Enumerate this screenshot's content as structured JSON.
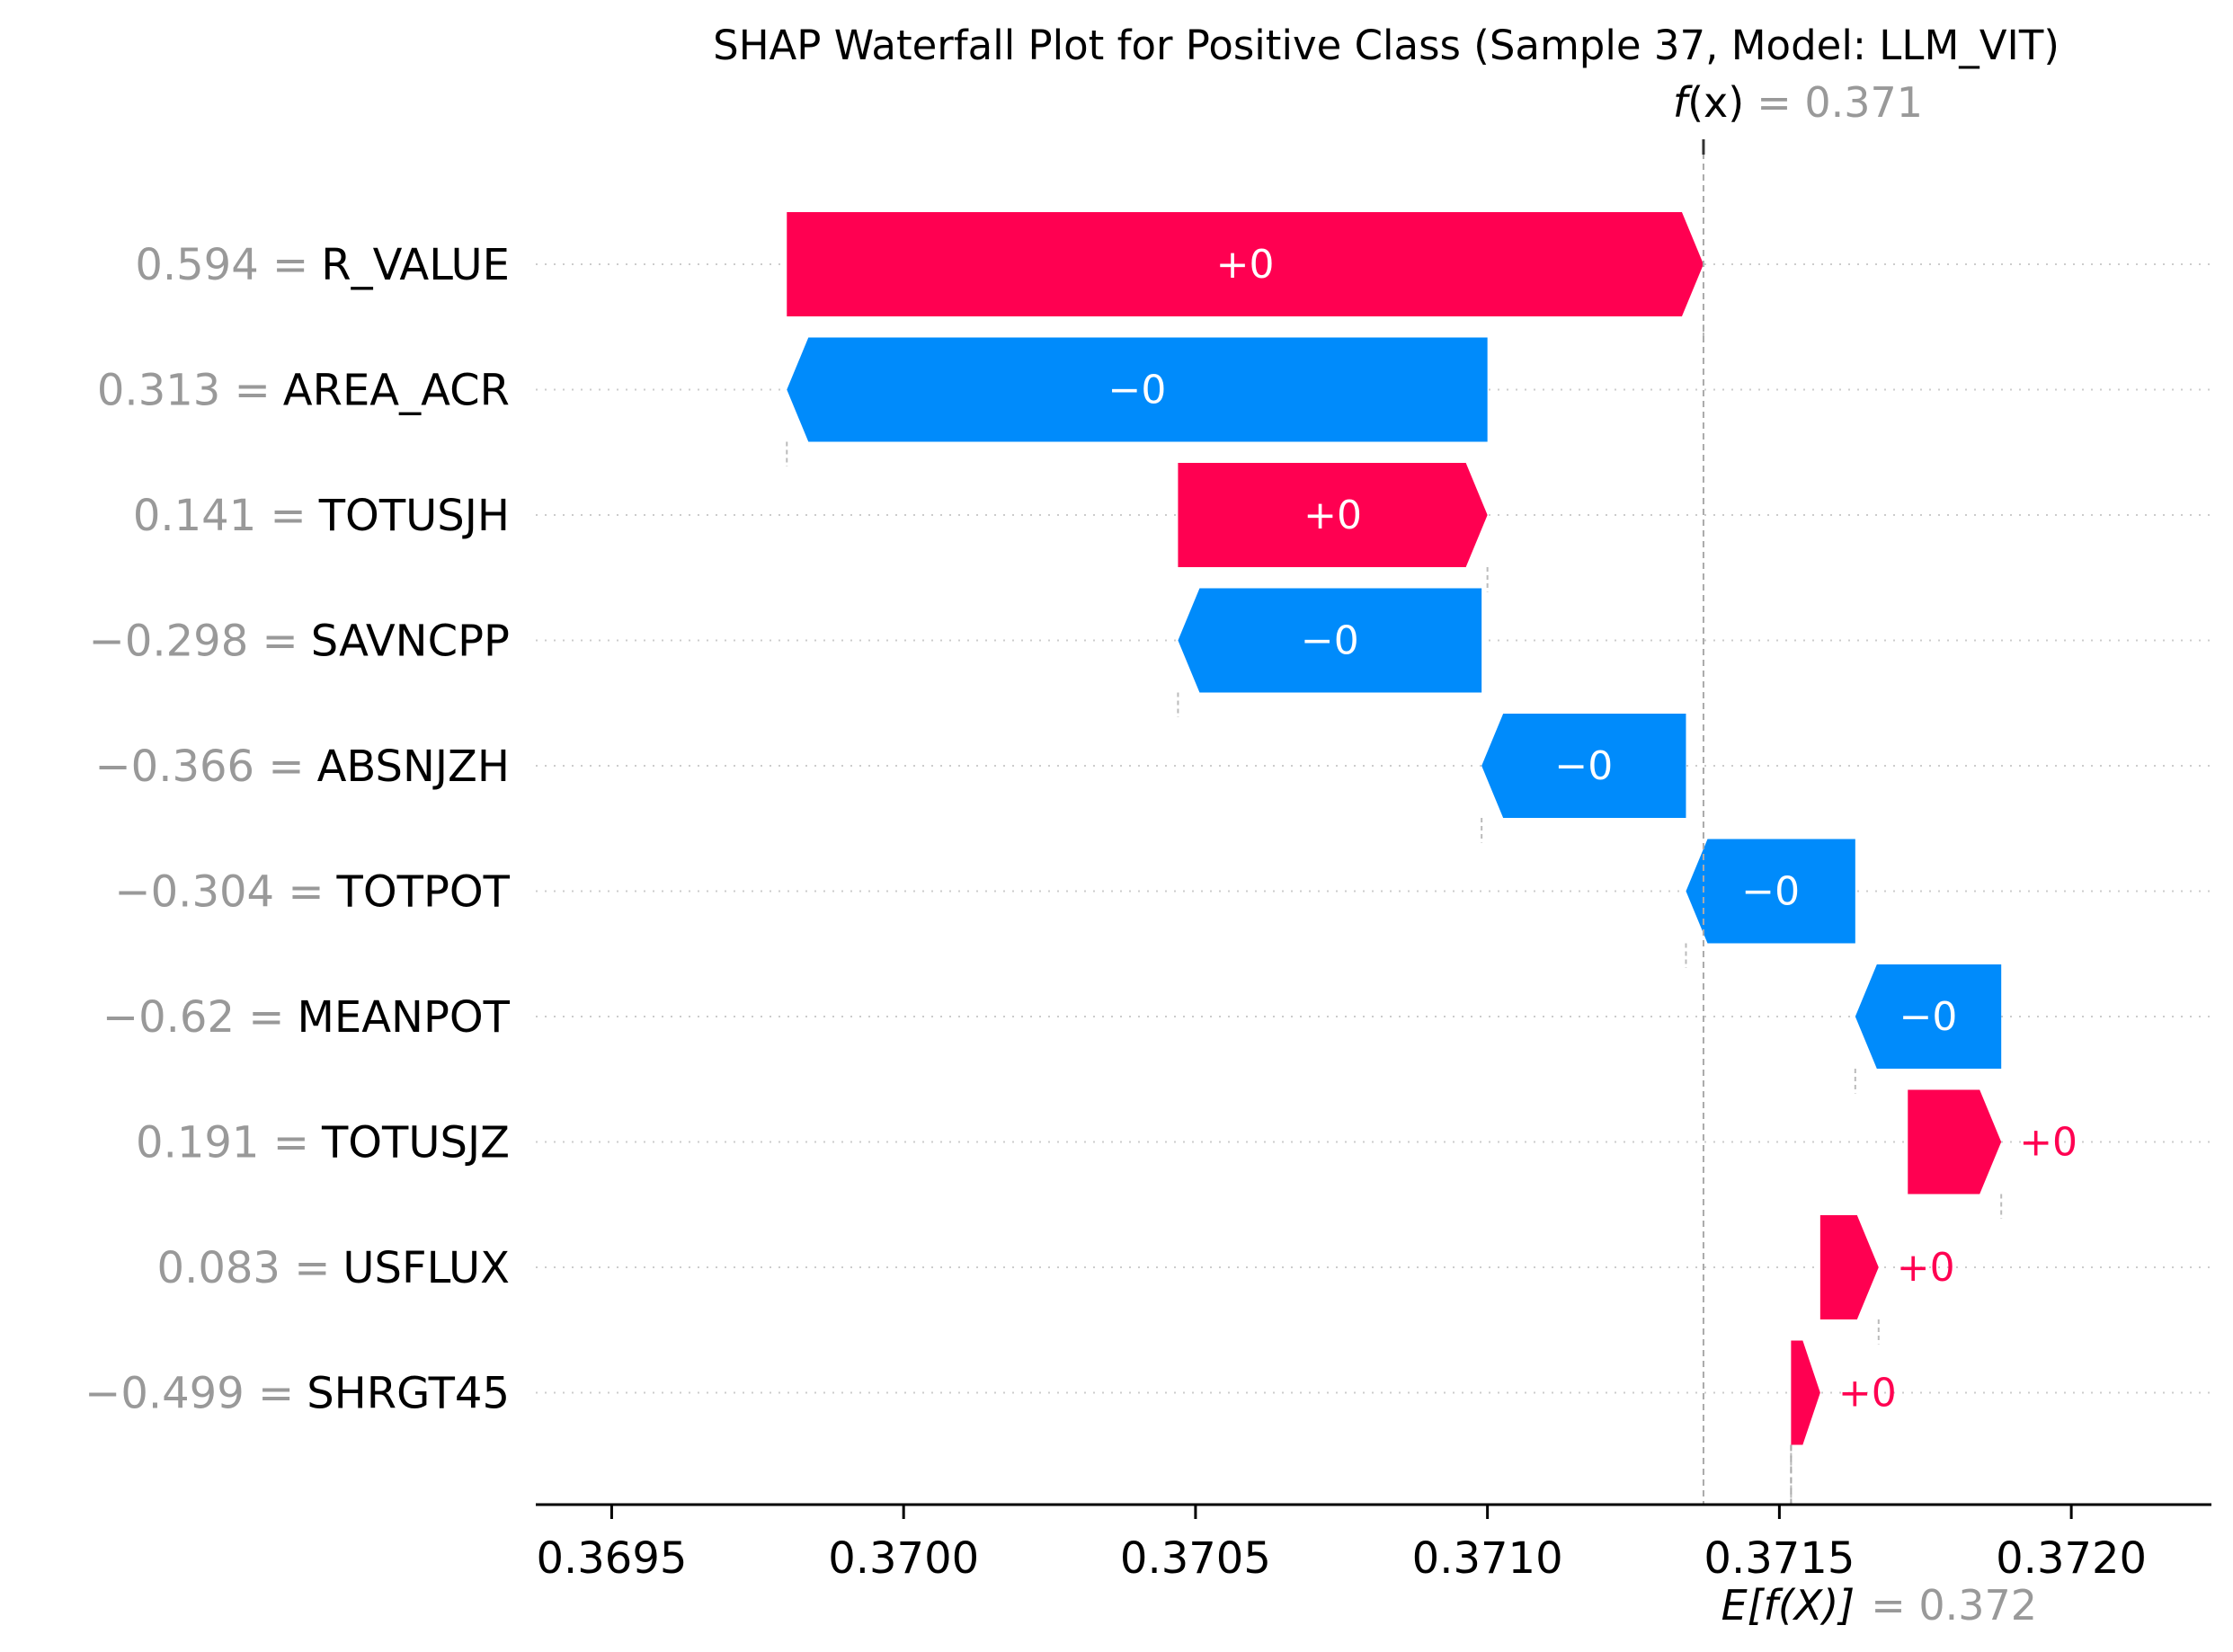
{
  "chart_data": {
    "type": "waterfall",
    "title": "SHAP Waterfall Plot for Positive Class (Sample 37, Model: LLM_VIT)",
    "fx": {
      "label_f": "f",
      "label_x": "(x)",
      "label_eq": "= 0.371",
      "value": 0.37137
    },
    "efx": {
      "label_main": "E[f(X)]",
      "label_eq": "= 0.372",
      "value": 0.37152
    },
    "xlim": [
      0.36937,
      0.37224
    ],
    "xticks": [
      {
        "value": 0.3695,
        "label": "0.3695"
      },
      {
        "value": 0.37,
        "label": "0.3700"
      },
      {
        "value": 0.3705,
        "label": "0.3705"
      },
      {
        "value": 0.371,
        "label": "0.3710"
      },
      {
        "value": 0.3715,
        "label": "0.3715"
      },
      {
        "value": 0.372,
        "label": "0.3720"
      }
    ],
    "features": [
      {
        "name": "R_VALUE",
        "value_label": "0.594 =",
        "start": 0.3698,
        "end": 0.37137,
        "label": "+0"
      },
      {
        "name": "AREA_ACR",
        "value_label": "0.313 =",
        "start": 0.371,
        "end": 0.3698,
        "label": "−0"
      },
      {
        "name": "TOTUSJH",
        "value_label": "0.141 =",
        "start": 0.37047,
        "end": 0.371,
        "label": "+0"
      },
      {
        "name": "SAVNCPP",
        "value_label": "−0.298 =",
        "start": 0.37099,
        "end": 0.37047,
        "label": "−0"
      },
      {
        "name": "ABSNJZH",
        "value_label": "−0.366 =",
        "start": 0.37134,
        "end": 0.37099,
        "label": "−0"
      },
      {
        "name": "TOTPOT",
        "value_label": "−0.304 =",
        "start": 0.37163,
        "end": 0.37134,
        "label": "−0"
      },
      {
        "name": "MEANPOT",
        "value_label": "−0.62 =",
        "start": 0.37188,
        "end": 0.37163,
        "label": "−0"
      },
      {
        "name": "TOTUSJZ",
        "value_label": "0.191 =",
        "start": 0.37172,
        "end": 0.37188,
        "label": "+0"
      },
      {
        "name": "USFLUX",
        "value_label": "0.083 =",
        "start": 0.37157,
        "end": 0.37167,
        "label": "+0"
      },
      {
        "name": "SHRGT45",
        "value_label": "−0.499 =",
        "start": 0.37152,
        "end": 0.37157,
        "label": "+0"
      }
    ],
    "colors": {
      "positive": "#ff0051",
      "negative": "#008bfb"
    }
  }
}
